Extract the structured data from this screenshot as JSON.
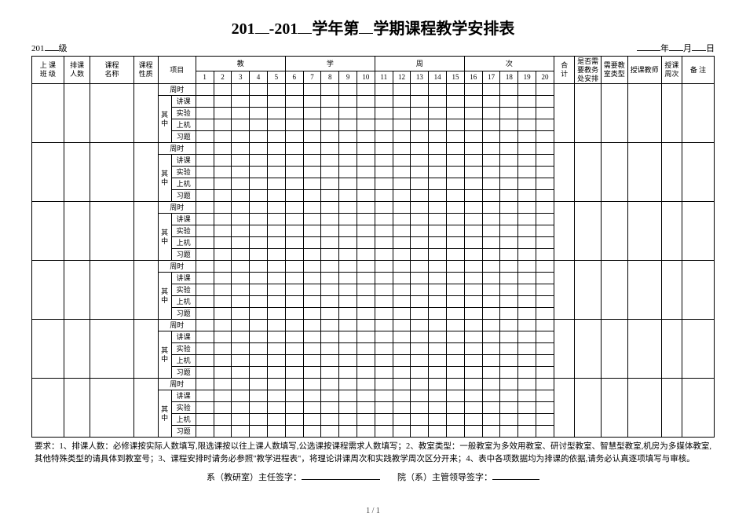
{
  "title_prefix": "201",
  "title_mid": "-201",
  "title_tail1": "学年第",
  "title_tail2": "学期课程教学安排表",
  "hdr_left_prefix": "201",
  "hdr_left_suffix": "级",
  "hdr_right_year": "年",
  "hdr_right_month": "月",
  "hdr_right_day": "日",
  "col": {
    "class": "上 课\n班 级",
    "count": "排课\n人数",
    "course": "课程\n名称",
    "nature": "课程\n性质",
    "item": "项目",
    "week_group_0": "教",
    "week_group_1": "学",
    "week_group_2": "周",
    "week_group_3": "次",
    "sum": "合\n计",
    "need": "是否需\n要教务\n处安排",
    "room": "需要教\n室类型",
    "teacher": "授课教师",
    "wkcnt": "授课\n周次",
    "remark": "备  注"
  },
  "weeks": [
    "1",
    "2",
    "3",
    "4",
    "5",
    "6",
    "7",
    "8",
    "9",
    "10",
    "11",
    "12",
    "13",
    "14",
    "15",
    "16",
    "17",
    "18",
    "19",
    "20"
  ],
  "row_labels": {
    "zhoushi": "周时",
    "qizhong": "其\n中",
    "jiangke": "讲课",
    "shiyan": "实验",
    "shangji": "上机",
    "xiti": "习题"
  },
  "block_count": 6,
  "notes_label": "要求：",
  "notes": "1、排课人数：必修课按实际人数填写,限选课按以往上课人数填写,公选课按课程需求人数填写；2、教室类型：一般教室为多效用教室、研讨型教室、智慧型教室,机房为多媒体教室,其他特殊类型的请具体到教室号；3、课程安排时请务必参照\"教学进程表\"，将理论讲课周次和实践教学周次区分开来；4、表中各项数据均为排课的依据,请务必认真逐项填写与审核。",
  "sign1": "系（教研室）主任签字：",
  "sign2": "院（系）主管领导签字：",
  "page": "1 / 1"
}
